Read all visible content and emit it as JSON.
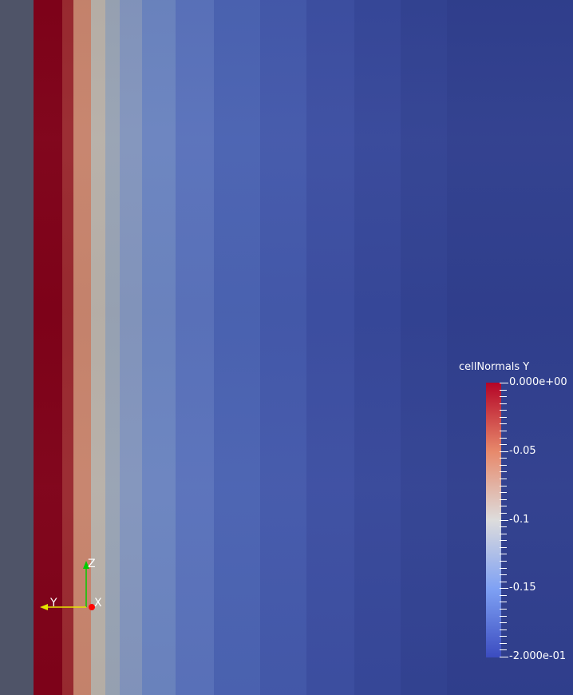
{
  "scene": {
    "background_color": "#2f3e8c",
    "left_margin_color": "#4f5468",
    "band_colors": [
      "#7f0219",
      "#9a2a30",
      "#c7846d",
      "#b8b0a8",
      "#98a3b4",
      "#8395bd",
      "#6b84c0",
      "#5a72bb",
      "#4b63b2",
      "#4459ab",
      "#3d4fa2",
      "#37489a",
      "#334393",
      "#303f8e"
    ]
  },
  "legend": {
    "title": "cellNormals Y",
    "colormap": "Cool to Warm",
    "range": [
      -0.2,
      0.0
    ],
    "tick_labels": [
      {
        "label": "0.000e+00",
        "value": 0.0
      },
      {
        "label": "-0.05",
        "value": -0.05
      },
      {
        "label": "-0.1",
        "value": -0.1
      },
      {
        "label": "-0.15",
        "value": -0.15
      },
      {
        "label": "-2.000e-01",
        "value": -0.2
      }
    ],
    "minor_tick_count": 41,
    "colors": {
      "max": "#b40426",
      "mid_warm": "#e7896b",
      "mid": "#dddcdc",
      "mid_cool": "#7fa1f4",
      "min": "#3b4cc0"
    }
  },
  "axes_widget": {
    "labels": {
      "z": "Z",
      "y": "Y",
      "x": "X"
    },
    "colors": {
      "z": "#00cc00",
      "y": "#e6e600",
      "x": "#ff0000"
    }
  }
}
